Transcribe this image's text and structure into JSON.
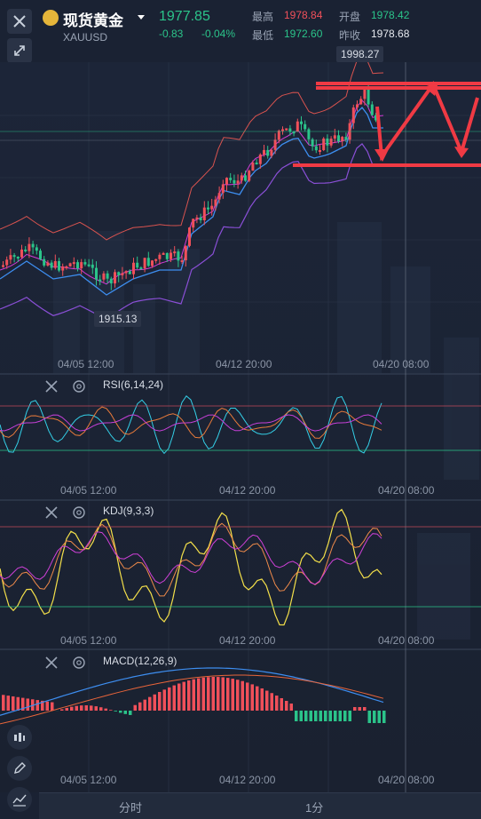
{
  "header": {
    "title": "现货黄金",
    "symbol": "XAUUSD",
    "price": "1977.85",
    "change": "-0.83",
    "change_pct": "-0.04%",
    "high_label": "最高",
    "high": "1978.84",
    "low_label": "最低",
    "low": "1972.60",
    "open_label": "开盘",
    "open": "1978.42",
    "prev_label": "昨收",
    "prev": "1978.68"
  },
  "main_chart": {
    "high_marker": "1998.27",
    "low_marker": "1915.13",
    "dates": [
      "04/05 12:00",
      "04/12 20:00",
      "04/20 08:00"
    ]
  },
  "rsi": {
    "label": "RSI(6,14,24)",
    "dates": [
      "04/05 12:00",
      "04/12 20:00",
      "04/20 08:00"
    ]
  },
  "kdj": {
    "label": "KDJ(9,3,3)",
    "dates": [
      "04/05 12:00",
      "04/12 20:00",
      "04/20 08:00"
    ]
  },
  "macd": {
    "label": "MACD(12,26,9)",
    "dates": [
      "04/05 12:00",
      "04/12 20:00",
      "04/20 08:00"
    ]
  },
  "bottom_tabs": [
    "分时",
    "1分"
  ],
  "icons": [
    "close-icon",
    "collapse-icon",
    "candles-icon",
    "pen-icon",
    "indicator-icon",
    "gear-icon"
  ],
  "colors": {
    "up": "#f0505a",
    "down": "#2bc48a",
    "bg": "#1a2233"
  }
}
